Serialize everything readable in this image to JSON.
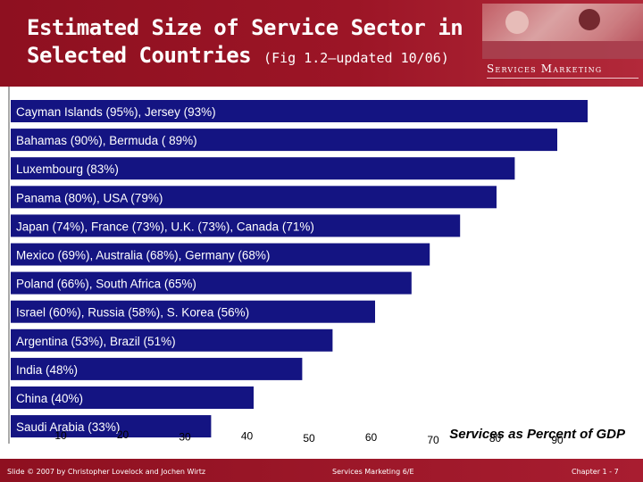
{
  "slide": {
    "title_line1": "Estimated Size of Service Sector in",
    "title_line2": "Selected Countries",
    "title_fig": "(Fig 1.2—updated 10/06)",
    "brand": "Services Marketing",
    "footer_left": "Slide © 2007 by Christopher Lovelock and Jochen Wirtz",
    "footer_center": "Services Marketing 6/E",
    "footer_right": "Chapter 1 - 7"
  },
  "colors": {
    "header": "#9c1526",
    "bar": "#141482"
  },
  "chart_data": {
    "type": "bar",
    "orientation": "horizontal",
    "categories": [
      "Cayman Islands (95%), Jersey (93%)",
      "Bahamas (90%), Bermuda ( 89%)",
      "Luxembourg (83%)",
      "Panama (80%), USA (79%)",
      "Japan (74%), France (73%), U.K. (73%), Canada (71%)",
      "Mexico (69%), Australia (68%), Germany (68%)",
      "Poland (66%), South Africa (65%)",
      "Israel (60%), Russia (58%), S. Korea  (56%)",
      "Argentina (53%), Brazil (51%)",
      "India (48%)",
      "China (40%)",
      "Saudi Arabia (33%)"
    ],
    "values": [
      95,
      90,
      83,
      80,
      74,
      69,
      66,
      60,
      53,
      48,
      40,
      33
    ],
    "xlabel": "Services as Percent of GDP",
    "ylabel": "",
    "xlim": [
      0,
      100
    ],
    "x_ticks": [
      "10",
      "20",
      "30",
      "40",
      "50",
      "60",
      "70",
      "80",
      "90"
    ],
    "grid": false
  }
}
